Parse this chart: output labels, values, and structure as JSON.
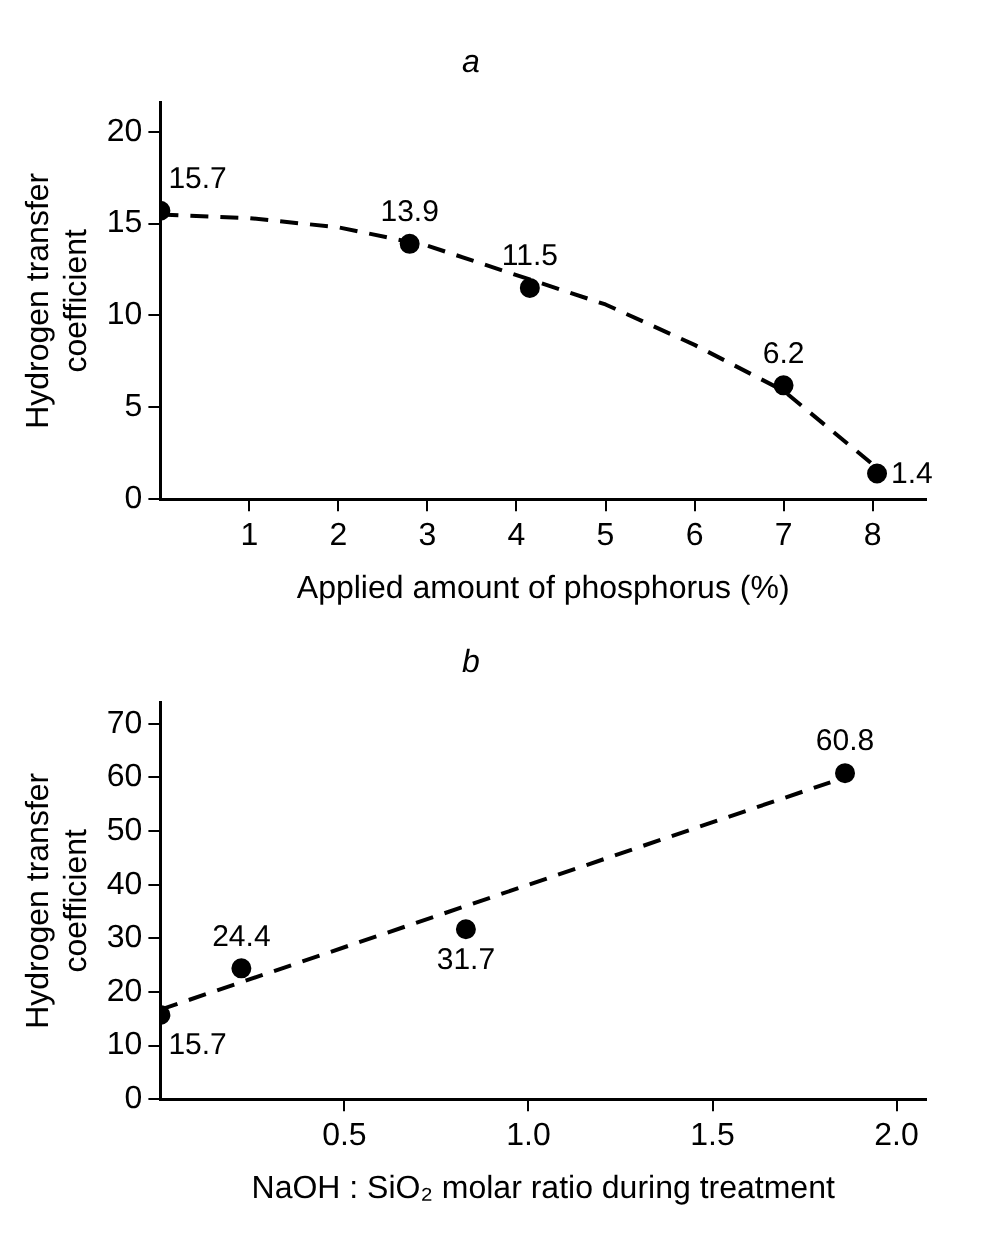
{
  "chart_data": [
    {
      "type": "scatter",
      "title": "a",
      "xlabel": "Applied amount of phosphorus (%)",
      "ylabel": "Hydrogen transfer coefficient",
      "xlim": [
        0,
        8.6
      ],
      "xticks": [
        1,
        2,
        3,
        4,
        5,
        6,
        7,
        8
      ],
      "ylim": [
        0,
        21.6
      ],
      "yticks": [
        0,
        5,
        10,
        15,
        20
      ],
      "grid": false,
      "series": [
        {
          "type": "scatter",
          "marker": "circle",
          "color": "#000000",
          "x": [
            0,
            2.8,
            4.15,
            7.0,
            8.05
          ],
          "values": [
            15.7,
            13.9,
            11.5,
            6.2,
            1.4
          ],
          "value_labels": [
            "15.7",
            "13.9",
            "11.5",
            "6.2",
            "1.4"
          ]
        },
        {
          "type": "line",
          "marker": "none",
          "line_style": "dashed",
          "color": "#000000",
          "x": [
            0,
            1,
            2,
            3,
            4,
            5,
            6,
            7,
            8
          ],
          "values": [
            15.5,
            15.3,
            14.8,
            13.8,
            12.2,
            10.6,
            8.4,
            5.9,
            1.9
          ]
        }
      ]
    },
    {
      "type": "scatter",
      "title": "b",
      "xlabel": "NaOH : SiO₂ molar ratio during treatment",
      "ylabel": "Hydrogen transfer coefficient",
      "xlim": [
        0,
        2.08
      ],
      "xticks": [
        {
          "value": 0.5,
          "label": "0.5"
        },
        {
          "value": 1,
          "label": "1.0"
        },
        {
          "value": 1.5,
          "label": "1.5"
        },
        {
          "value": 2,
          "label": "2.0"
        }
      ],
      "ylim": [
        0,
        74
      ],
      "yticks": [
        0,
        10,
        20,
        30,
        40,
        50,
        60,
        70
      ],
      "grid": false,
      "series": [
        {
          "type": "scatter",
          "marker": "circle",
          "color": "#000000",
          "x": [
            0,
            0.22,
            0.83,
            1.86
          ],
          "values": [
            15.7,
            24.4,
            31.7,
            60.8
          ],
          "value_labels": [
            "15.7",
            "24.4",
            "31.7",
            "60.8"
          ]
        },
        {
          "type": "line",
          "marker": "none",
          "line_style": "dashed",
          "color": "#000000",
          "x": [
            0,
            1.82
          ],
          "values": [
            16.7,
            59.1
          ]
        }
      ]
    }
  ]
}
